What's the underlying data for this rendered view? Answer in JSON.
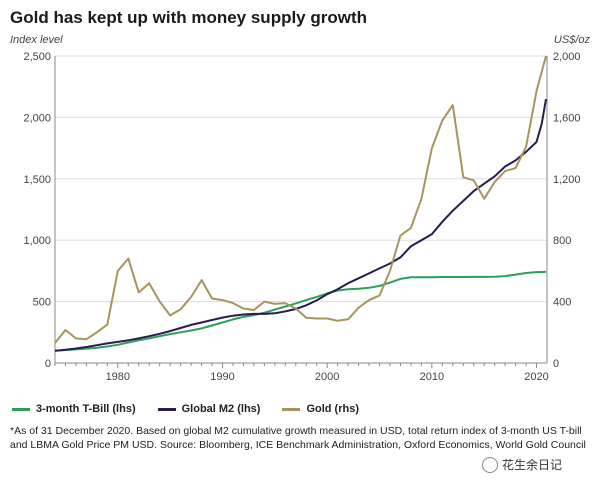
{
  "title": "Gold has kept up with money supply growth",
  "left_axis_unit": "Index level",
  "right_axis_unit": "US$/oz",
  "legend": {
    "tbill": "3-month T-Bill (lhs)",
    "m2": "Global M2 (lhs)",
    "gold": "Gold (rhs)"
  },
  "footnote": "*As of 31 December 2020. Based on global M2 cumulative growth measured in USD, total return index of 3-month US T-bill and LBMA Gold Price PM USD. Source: Bloomberg, ICE Benchmark Administration, Oxford Economics, World Gold Council",
  "watermark": "花生余日记",
  "watermark_icon": "wechat-icon",
  "colors": {
    "tbill": "#2e9e5b",
    "m2": "#2b1a4e",
    "gold": "#a8945e",
    "grid": "#dddddd",
    "axis": "#888888"
  },
  "chart_data": {
    "type": "line",
    "xlabel": "",
    "ylabel": "Index level",
    "y2label": "US$/oz",
    "xlim": [
      1974,
      2021
    ],
    "ylim": [
      0,
      2500
    ],
    "y2lim": [
      0,
      2000
    ],
    "x_ticks": [
      "1980",
      "1990",
      "2000",
      "2010",
      "2020"
    ],
    "y_ticks": [
      "0",
      "500",
      "1,000",
      "1,500",
      "2,000",
      "2,500"
    ],
    "y2_ticks": [
      "0",
      "400",
      "800",
      "1,200",
      "1,600",
      "2,000"
    ],
    "grid": "horizontal",
    "legend_position": "bottom",
    "x": [
      1974,
      1975,
      1976,
      1977,
      1978,
      1979,
      1980,
      1981,
      1982,
      1983,
      1984,
      1985,
      1986,
      1987,
      1988,
      1989,
      1990,
      1991,
      1992,
      1993,
      1994,
      1995,
      1996,
      1997,
      1998,
      1999,
      2000,
      2001,
      2002,
      2003,
      2004,
      2005,
      2006,
      2007,
      2008,
      2009,
      2010,
      2011,
      2012,
      2013,
      2014,
      2015,
      2016,
      2017,
      2018,
      2019,
      2020,
      2020.5,
      2020.9
    ],
    "series": [
      {
        "name": "3-month T-Bill (lhs)",
        "axis": "left",
        "color_key": "tbill",
        "values": [
          100,
          105,
          111,
          117,
          124,
          134,
          148,
          167,
          185,
          200,
          218,
          235,
          250,
          265,
          282,
          305,
          330,
          355,
          375,
          390,
          410,
          435,
          460,
          485,
          512,
          538,
          567,
          590,
          600,
          605,
          612,
          628,
          655,
          685,
          698,
          699,
          699,
          700,
          700,
          700,
          701,
          701,
          703,
          708,
          720,
          733,
          740,
          741,
          742
        ]
      },
      {
        "name": "Global M2 (lhs)",
        "axis": "left",
        "color_key": "m2",
        "values": [
          100,
          108,
          118,
          130,
          145,
          160,
          172,
          185,
          200,
          218,
          238,
          260,
          285,
          310,
          330,
          350,
          370,
          385,
          395,
          400,
          400,
          405,
          420,
          440,
          470,
          510,
          560,
          600,
          650,
          690,
          730,
          770,
          810,
          860,
          950,
          1000,
          1050,
          1150,
          1240,
          1320,
          1400,
          1460,
          1520,
          1600,
          1650,
          1720,
          1800,
          1950,
          2150
        ]
      },
      {
        "name": "Gold (rhs)",
        "axis": "right",
        "color_key": "gold",
        "values": [
          130,
          215,
          160,
          155,
          200,
          250,
          600,
          680,
          460,
          520,
          400,
          310,
          350,
          430,
          540,
          420,
          410,
          390,
          355,
          345,
          400,
          385,
          390,
          355,
          295,
          290,
          290,
          275,
          285,
          360,
          410,
          440,
          600,
          830,
          880,
          1070,
          1400,
          1580,
          1680,
          1210,
          1190,
          1070,
          1180,
          1250,
          1270,
          1410,
          1770,
          1900,
          2000
        ]
      }
    ]
  }
}
